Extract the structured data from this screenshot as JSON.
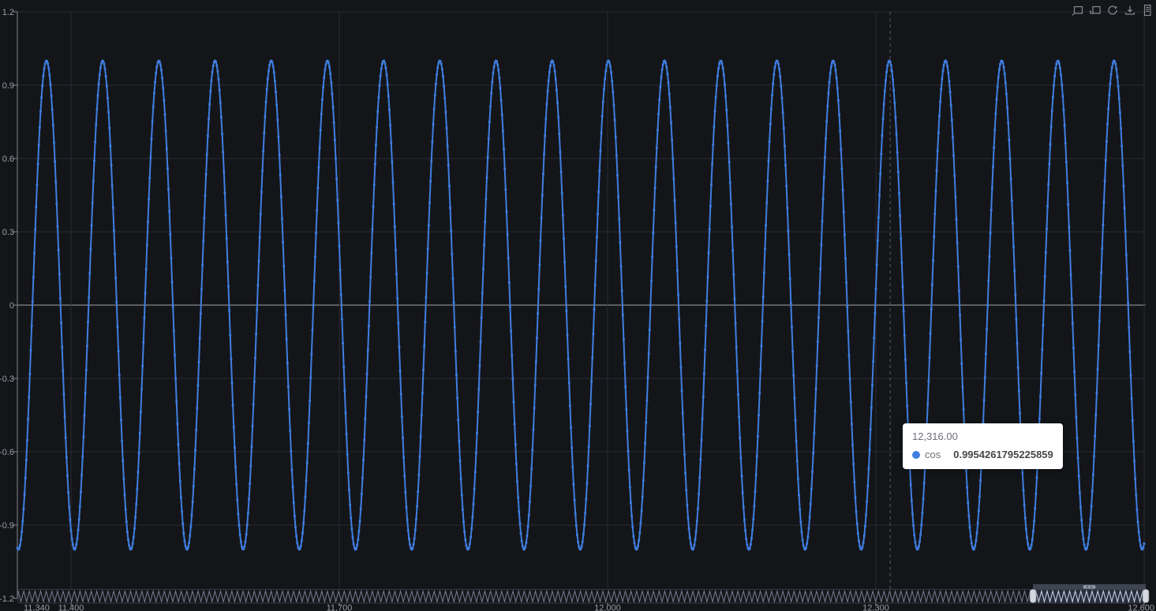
{
  "page": {
    "background": "#141519"
  },
  "chart_data": {
    "type": "line",
    "title": "",
    "series": [
      {
        "name": "cos",
        "color": "#3f7ee0",
        "formula": "y = cos(x / 10)",
        "angular_frequency": 0.1,
        "x_start": 11340,
        "x_end": 12600,
        "x_step": 1,
        "symbol": "square",
        "symbol_size": 3,
        "line_width": 2
      }
    ],
    "x_axis": {
      "visible_range": [
        11340,
        12600
      ],
      "full_range": [
        0,
        12600
      ],
      "label_color": "#9b9ea7",
      "ticks": [
        {
          "value": 11340,
          "label": "11,340",
          "grid": false,
          "align": "start"
        },
        {
          "value": 11400,
          "label": "11,400",
          "grid": true,
          "align": "middle"
        },
        {
          "value": 11700,
          "label": "11,700",
          "grid": true,
          "align": "middle"
        },
        {
          "value": 12000,
          "label": "12,000",
          "grid": true,
          "align": "middle"
        },
        {
          "value": 12300,
          "label": "12,300",
          "grid": true,
          "align": "middle"
        },
        {
          "value": 12600,
          "label": "12,600",
          "grid": true,
          "align": "end"
        }
      ]
    },
    "y_axis": {
      "range": [
        -1.2,
        1.2
      ],
      "interval": 0.3,
      "label_color": "#9b9ea7",
      "axis_line_color": "#85878d",
      "grid_line_color": "#2a2c32",
      "zero_line_color": "#84868c",
      "ticks": [
        {
          "value": 1.2,
          "label": "1.2"
        },
        {
          "value": 0.9,
          "label": "0.9"
        },
        {
          "value": 0.6,
          "label": "0.6"
        },
        {
          "value": 0.3,
          "label": "0.3"
        },
        {
          "value": 0,
          "label": "0"
        },
        {
          "value": -0.3,
          "label": "-0.3"
        },
        {
          "value": -0.6,
          "label": "-0.6"
        },
        {
          "value": -0.9,
          "label": "-0.9"
        },
        {
          "value": -1.2,
          "label": "-1.2"
        }
      ]
    },
    "axis_pointer": {
      "x_value": 12316,
      "line_style": "dashed",
      "color": "#5a5b61"
    },
    "grid": true,
    "legend": null
  },
  "tooltip": {
    "x_label": "12,316.00",
    "series_name": "cos",
    "value": "0.9954261795225859",
    "marker_color": "#3f7ee0",
    "bg": "#ffffff"
  },
  "toolbar": {
    "color": "#9aa0a8",
    "icons": [
      {
        "name": "zoom-select-icon"
      },
      {
        "name": "zoom-reset-icon"
      },
      {
        "name": "restore-icon"
      },
      {
        "name": "save-image-icon"
      },
      {
        "name": "data-view-icon"
      }
    ]
  },
  "datazoom": {
    "window_start_percent": 90,
    "window_end_percent": 100,
    "strip_bg": "#17181d",
    "strip_border": "#34363e",
    "shadow_color": "#787e92",
    "selected_shadow_color": "#c6cfe3",
    "window_fill": "rgba(128,160,215,0.16)",
    "window_border": "#b9c2d1",
    "handle_fill": "#d4d8e0",
    "handle_border": "#6f7581",
    "move_bar_fill": "#3e4450",
    "grip_fill": "#8e96a4"
  }
}
